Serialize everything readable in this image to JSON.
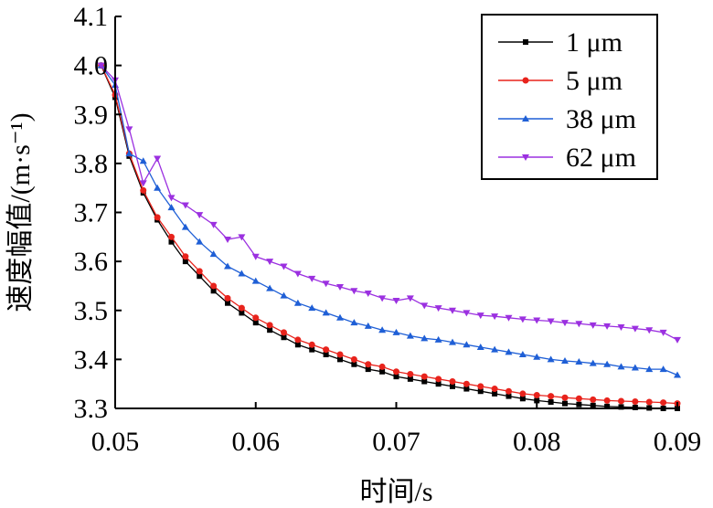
{
  "chart_data": {
    "type": "line",
    "title": "",
    "xlabel": "时间/s",
    "ylabel": "速度幅值/(m·s⁻¹)",
    "xlim": [
      0.05,
      0.09
    ],
    "ylim": [
      3.3,
      4.1
    ],
    "x_ticks": [
      "0.05",
      "0.06",
      "0.07",
      "0.08",
      "0.09"
    ],
    "y_ticks": [
      "3.3",
      "3.4",
      "3.5",
      "3.6",
      "3.7",
      "3.8",
      "3.9",
      "4.0",
      "4.1"
    ],
    "grid": false,
    "legend_position": "top-right",
    "x": [
      0.049,
      0.05,
      0.051,
      0.052,
      0.053,
      0.054,
      0.055,
      0.056,
      0.057,
      0.058,
      0.059,
      0.06,
      0.061,
      0.062,
      0.063,
      0.064,
      0.065,
      0.066,
      0.067,
      0.068,
      0.069,
      0.07,
      0.071,
      0.072,
      0.073,
      0.074,
      0.075,
      0.076,
      0.077,
      0.078,
      0.079,
      0.08,
      0.081,
      0.082,
      0.083,
      0.084,
      0.085,
      0.086,
      0.087,
      0.088,
      0.089,
      0.09
    ],
    "series": [
      {
        "name": "1 μm",
        "color": "#000000",
        "marker": "square",
        "values": [
          4.0,
          3.935,
          3.815,
          3.74,
          3.685,
          3.64,
          3.6,
          3.57,
          3.54,
          3.515,
          3.495,
          3.475,
          3.46,
          3.445,
          3.43,
          3.42,
          3.41,
          3.4,
          3.39,
          3.38,
          3.375,
          3.365,
          3.36,
          3.355,
          3.35,
          3.345,
          3.34,
          3.335,
          3.33,
          3.325,
          3.32,
          3.316,
          3.313,
          3.31,
          3.308,
          3.306,
          3.304,
          3.303,
          3.302,
          3.301,
          3.3,
          3.3
        ]
      },
      {
        "name": "5 μm",
        "color": "#e8231c",
        "marker": "circle",
        "values": [
          4.0,
          3.94,
          3.82,
          3.745,
          3.69,
          3.65,
          3.61,
          3.58,
          3.55,
          3.525,
          3.505,
          3.485,
          3.47,
          3.455,
          3.44,
          3.43,
          3.42,
          3.41,
          3.4,
          3.39,
          3.385,
          3.375,
          3.37,
          3.365,
          3.36,
          3.355,
          3.35,
          3.345,
          3.34,
          3.335,
          3.33,
          3.327,
          3.325,
          3.322,
          3.32,
          3.318,
          3.316,
          3.315,
          3.314,
          3.313,
          3.312,
          3.31
        ]
      },
      {
        "name": "38 μm",
        "color": "#1f5fd6",
        "marker": "triangle-up",
        "values": [
          4.0,
          3.96,
          3.82,
          3.805,
          3.75,
          3.71,
          3.67,
          3.64,
          3.615,
          3.59,
          3.575,
          3.56,
          3.545,
          3.53,
          3.515,
          3.505,
          3.495,
          3.485,
          3.475,
          3.468,
          3.46,
          3.455,
          3.448,
          3.443,
          3.44,
          3.435,
          3.43,
          3.425,
          3.42,
          3.415,
          3.41,
          3.405,
          3.4,
          3.397,
          3.395,
          3.392,
          3.39,
          3.385,
          3.383,
          3.38,
          3.38,
          3.368
        ]
      },
      {
        "name": "62 μm",
        "color": "#9b30e0",
        "marker": "triangle-down",
        "values": [
          4.0,
          3.97,
          3.87,
          3.76,
          3.81,
          3.73,
          3.715,
          3.695,
          3.675,
          3.645,
          3.65,
          3.61,
          3.6,
          3.59,
          3.575,
          3.565,
          3.555,
          3.548,
          3.54,
          3.535,
          3.525,
          3.52,
          3.525,
          3.51,
          3.505,
          3.5,
          3.495,
          3.49,
          3.488,
          3.485,
          3.482,
          3.48,
          3.478,
          3.475,
          3.473,
          3.47,
          3.468,
          3.466,
          3.463,
          3.46,
          3.455,
          3.44
        ]
      }
    ]
  }
}
